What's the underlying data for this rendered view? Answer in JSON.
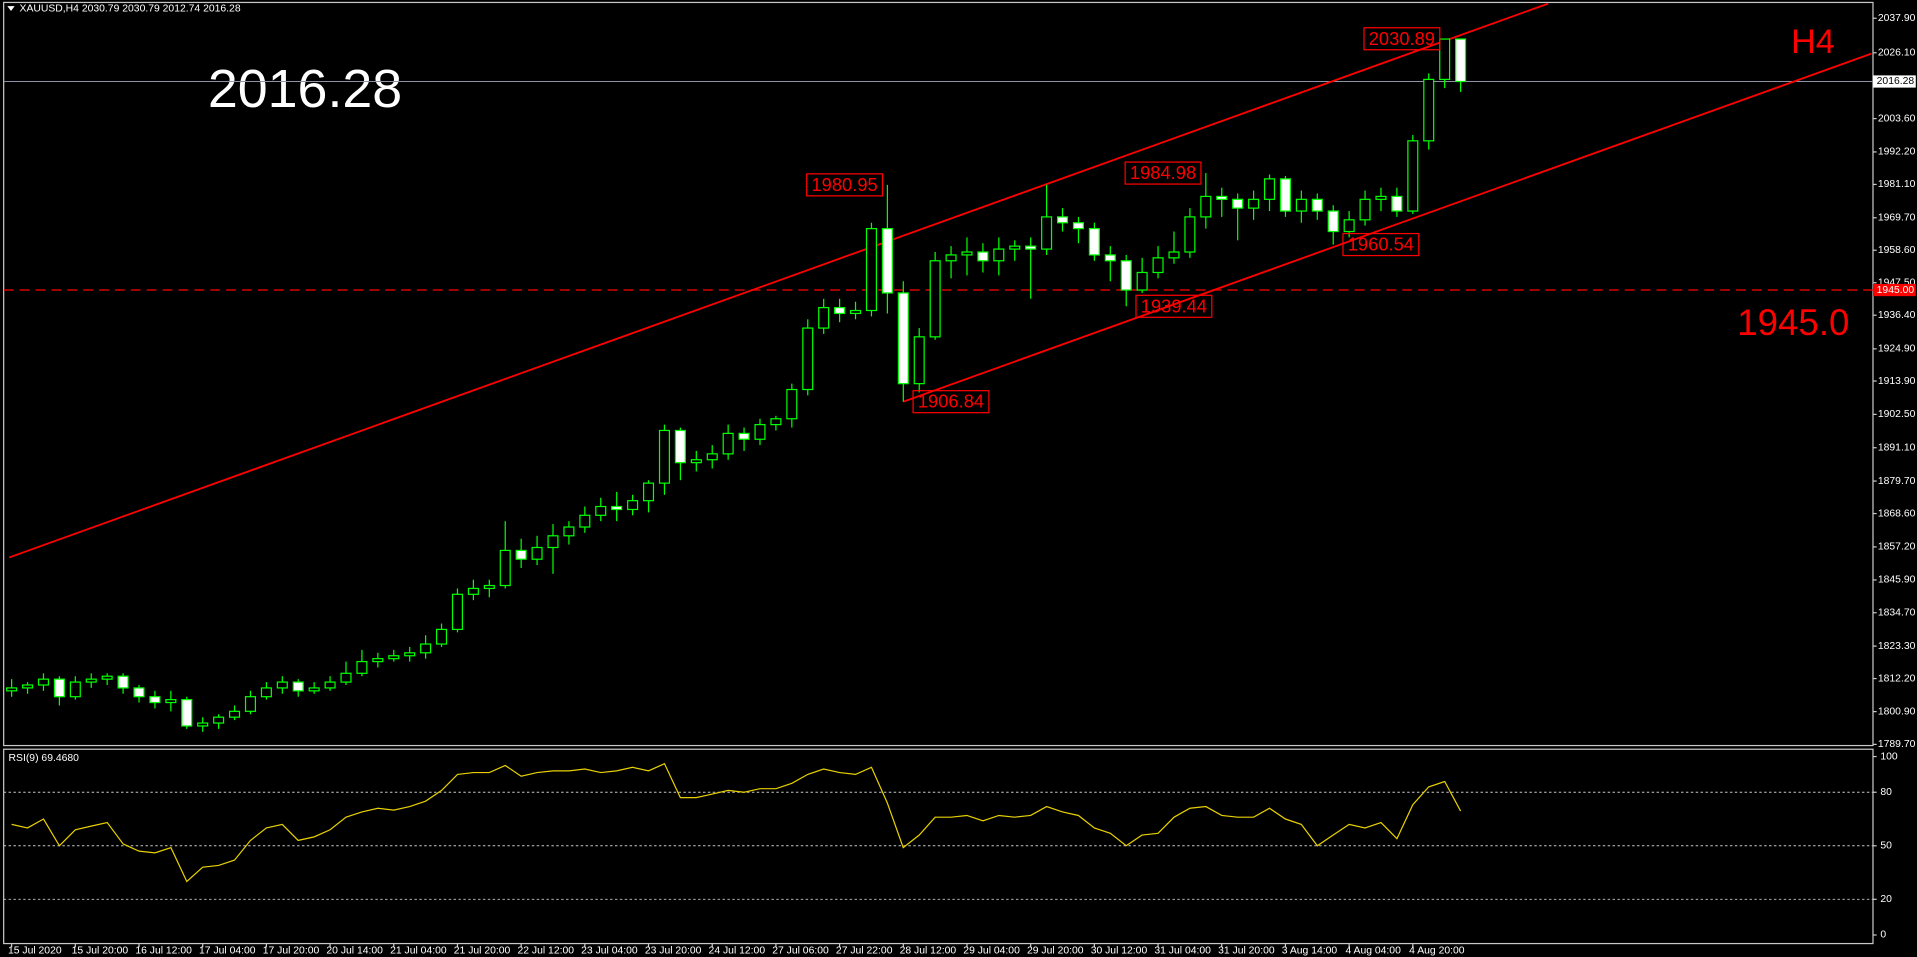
{
  "chart_data": {
    "type": "candlestick",
    "symbol": "XAUUSD,H4",
    "title": "H4",
    "categories": [
      "15 Jul 2020",
      null,
      null,
      null,
      "15 Jul 20:00",
      null,
      null,
      null,
      "16 Jul 12:00",
      null,
      null,
      null,
      "17 Jul 04:00",
      null,
      null,
      null,
      "17 Jul 20:00",
      null,
      null,
      null,
      "20 Jul 14:00",
      null,
      null,
      null,
      "21 Jul 04:00",
      null,
      null,
      null,
      "21 Jul 20:00",
      null,
      null,
      null,
      "22 Jul 12:00",
      null,
      null,
      null,
      "23 Jul 04:00",
      null,
      null,
      null,
      "23 Jul 20:00",
      null,
      null,
      null,
      "24 Jul 12:00",
      null,
      null,
      null,
      "27 Jul 06:00",
      null,
      null,
      null,
      "27 Jul 22:00",
      null,
      null,
      null,
      "28 Jul 12:00",
      null,
      null,
      null,
      "29 Jul 04:00",
      null,
      null,
      null,
      "29 Jul 20:00",
      null,
      null,
      null,
      "30 Jul 12:00",
      null,
      null,
      null,
      "31 Jul 04:00",
      null,
      null,
      null,
      "31 Jul 20:00",
      null,
      null,
      null,
      "3 Aug 14:00",
      null,
      null,
      null,
      "4 Aug 04:00",
      null,
      null,
      null,
      "4 Aug 20:00",
      null,
      null,
      null
    ],
    "open": [
      1808,
      1809,
      1810,
      1812,
      1806,
      1811,
      1812,
      1813,
      1809,
      1806,
      1804,
      1805,
      1796,
      1797,
      1799,
      1801,
      1806,
      1809,
      1811,
      1808,
      1809,
      1811,
      1814,
      1818,
      1819,
      1820,
      1821,
      1824,
      1829,
      1841,
      1843,
      1844,
      1856,
      1853,
      1857,
      1861,
      1864,
      1868,
      1871,
      1870,
      1873,
      1879,
      1897,
      1886,
      1887,
      1889,
      1896,
      1894,
      1899,
      1901,
      1911,
      1932,
      1939,
      1937,
      1938,
      1966,
      1944,
      1913,
      1929,
      1955,
      1957,
      1958,
      1955,
      1959,
      1960,
      1959,
      1970,
      1968,
      1966,
      1957,
      1955,
      1945,
      1951,
      1956,
      1958,
      1970,
      1977,
      1976,
      1973,
      1976,
      1983,
      1972,
      1976,
      1972,
      1965,
      1969,
      1976,
      1977,
      1972,
      1996,
      2017,
      2030.79
    ],
    "high": [
      1812,
      1811,
      1814,
      1813,
      1813,
      1814,
      1814,
      1814,
      1810,
      1808,
      1808,
      1806,
      1799,
      1800,
      1803,
      1808,
      1811,
      1813,
      1812,
      1811,
      1813,
      1818,
      1822,
      1821,
      1822,
      1823,
      1827,
      1831,
      1843,
      1846,
      1846,
      1866,
      1860,
      1861,
      1865,
      1866,
      1871,
      1874,
      1876,
      1875,
      1880,
      1899,
      1898,
      1890,
      1892,
      1899,
      1898,
      1901,
      1902,
      1913,
      1935,
      1942,
      1942,
      1941,
      1968,
      1980.95,
      1948,
      1932,
      1958,
      1960,
      1963,
      1961,
      1963,
      1962,
      1963,
      1981,
      1973,
      1970,
      1968,
      1960,
      1957,
      1956,
      1960,
      1965,
      1973,
      1984.98,
      1980,
      1978,
      1979,
      1984.5,
      1984,
      1979,
      1978,
      1974,
      1972,
      1979,
      1980,
      1980,
      1998,
      2019,
      2030.89,
      2030.79
    ],
    "low": [
      1806,
      1807,
      1808,
      1803,
      1805,
      1809,
      1810,
      1807,
      1804,
      1802,
      1801,
      1795,
      1794,
      1795,
      1798,
      1800,
      1805,
      1807,
      1806,
      1807,
      1808,
      1810,
      1813,
      1816,
      1818,
      1818,
      1819,
      1823,
      1828,
      1839,
      1840,
      1843,
      1850,
      1851,
      1848,
      1858,
      1862,
      1866,
      1866,
      1868,
      1869,
      1875,
      1880,
      1883,
      1884,
      1887,
      1890,
      1892,
      1897,
      1898,
      1909,
      1930,
      1934,
      1935,
      1936,
      1937,
      1906.84,
      1910,
      1928,
      1949,
      1950,
      1951,
      1950,
      1955,
      1942,
      1957,
      1965,
      1961,
      1955,
      1948,
      1939.44,
      1944,
      1949,
      1954,
      1956,
      1966,
      1970,
      1962,
      1969,
      1972,
      1970,
      1968,
      1969,
      1960.54,
      1963,
      1967,
      1972,
      1970,
      1971,
      1993,
      2014,
      2012.74
    ],
    "close": [
      1809,
      1810,
      1812,
      1806,
      1811,
      1812,
      1813,
      1809,
      1806,
      1804,
      1805,
      1796,
      1797,
      1799,
      1801,
      1806,
      1809,
      1811,
      1808,
      1809,
      1811,
      1814,
      1818,
      1819,
      1820,
      1821,
      1824,
      1829,
      1841,
      1843,
      1844,
      1856,
      1853,
      1857,
      1861,
      1864,
      1868,
      1871,
      1870,
      1873,
      1879,
      1897,
      1886,
      1887,
      1889,
      1896,
      1894,
      1899,
      1901,
      1911,
      1932,
      1939,
      1937,
      1938,
      1966,
      1944,
      1913,
      1929,
      1955,
      1957,
      1958,
      1955,
      1959,
      1960,
      1959,
      1970,
      1968,
      1966,
      1957,
      1955,
      1945,
      1951,
      1956,
      1958,
      1970,
      1977,
      1976,
      1973,
      1976,
      1983,
      1972,
      1976,
      1972,
      1965,
      1969,
      1976,
      1977,
      1972,
      1996,
      2017,
      2030.79,
      2016.28
    ],
    "colors": {
      "background": "#000000",
      "up_body": "#000000",
      "down_body": "#ffffff",
      "wick": "#00ff00",
      "line": "#ff0000",
      "text": "#ffffff",
      "close_line": "#8a94a6",
      "rsi": "#e8d000"
    },
    "xlim": [
      -0.5,
      116.9
    ],
    "ylim": [
      1789.3,
      2043.3
    ],
    "yticks": [
      {
        "value": 2037.9,
        "label": "2037.90"
      },
      {
        "value": 2026.1,
        "label": "2026.10"
      },
      {
        "value": 2003.6,
        "label": "2003.60"
      },
      {
        "value": 1992.2,
        "label": "1992.20"
      },
      {
        "value": 1981.1,
        "label": "1981.10"
      },
      {
        "value": 1969.7,
        "label": "1969.70"
      },
      {
        "value": 1958.6,
        "label": "1958.60"
      },
      {
        "value": 1947.5,
        "label": "1947.50"
      },
      {
        "value": 1936.4,
        "label": "1936.40"
      },
      {
        "value": 1924.9,
        "label": "1924.90"
      },
      {
        "value": 1913.9,
        "label": "1913.90"
      },
      {
        "value": 1902.5,
        "label": "1902.50"
      },
      {
        "value": 1891.1,
        "label": "1891.10"
      },
      {
        "value": 1879.7,
        "label": "1879.70"
      },
      {
        "value": 1868.6,
        "label": "1868.60"
      },
      {
        "value": 1857.2,
        "label": "1857.20"
      },
      {
        "value": 1845.9,
        "label": "1845.90"
      },
      {
        "value": 1834.7,
        "label": "1834.70"
      },
      {
        "value": 1823.3,
        "label": "1823.30"
      },
      {
        "value": 1812.2,
        "label": "1812.20"
      },
      {
        "value": 1800.9,
        "label": "1800.90"
      },
      {
        "value": 1789.7,
        "label": "1789.70"
      }
    ],
    "price_labels": [
      2030.89,
      1980.95,
      1984.98,
      1960.54,
      1939.44,
      1906.84
    ],
    "hline": {
      "value": 1945,
      "label": "1945.0",
      "axis_label": "1945.00"
    },
    "trendlines": [
      [
        [
          -0.15,
          1853.6
        ],
        [
          96.5,
          2042.9
        ]
      ],
      [
        [
          56,
          1906.84
        ],
        [
          116.8,
          2025.8
        ]
      ]
    ],
    "rsi": {
      "name": "RSI(9)",
      "current_label": "69.4680",
      "ylim": [
        0,
        100
      ],
      "yticks": [
        100,
        80,
        50,
        20,
        0
      ],
      "levels": [
        80,
        50,
        20
      ],
      "values": [
        62,
        60,
        65,
        50,
        59,
        61,
        63,
        51,
        47,
        46,
        49,
        30,
        38,
        39,
        42,
        53,
        60,
        62,
        53,
        55,
        59,
        66,
        69,
        71,
        70,
        72,
        75,
        81,
        90,
        91,
        91,
        95,
        89,
        91,
        92,
        92,
        93,
        91,
        92,
        94,
        92,
        96,
        77,
        77,
        79,
        81,
        80,
        82,
        82,
        85,
        90,
        93,
        91,
        90,
        94,
        74,
        49,
        56,
        66,
        66,
        67,
        64,
        67,
        66,
        67,
        72,
        69,
        67,
        60,
        57,
        50,
        56,
        57,
        66,
        71,
        72,
        67,
        66,
        66,
        71,
        65,
        62,
        50,
        56,
        62,
        60,
        63,
        54,
        73,
        83,
        86,
        69.468
      ]
    }
  }
}
